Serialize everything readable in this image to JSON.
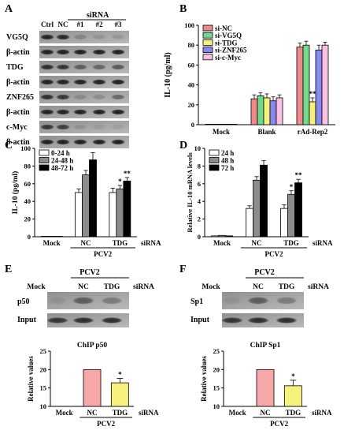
{
  "panels": {
    "A": {
      "letter": "A",
      "lanes": [
        "Ctrl",
        "NC",
        "#1",
        "#2",
        "#3"
      ],
      "header": "siRNA",
      "rows": [
        "VG5Q",
        "β-actin",
        "TDG",
        "β-actin",
        "ZNF265",
        "β-actin",
        "c-Myc",
        "β-actin"
      ]
    },
    "E": {
      "letter": "E",
      "rows": [
        "p50",
        "Input"
      ]
    },
    "F": {
      "letter": "F",
      "rows": [
        "Sp1",
        "Input"
      ]
    }
  },
  "chart_data": [
    {
      "panel": "B",
      "letter": "B",
      "type": "bar",
      "categories": [
        "Mock",
        "Blank",
        "rAd-Rep2"
      ],
      "ylabel": "IL-10 (pg/ml)",
      "ylim": [
        0,
        100
      ],
      "yticks": [
        0,
        20,
        40,
        60,
        80,
        100
      ],
      "legend_position": "top-left",
      "series": [
        {
          "name": "si-NC",
          "color": "#f08a8a",
          "values": [
            0.5,
            26,
            78
          ],
          "errors": [
            0,
            4,
            4
          ]
        },
        {
          "name": "si-VG5Q",
          "color": "#72d88e",
          "values": [
            0.5,
            29,
            80
          ],
          "errors": [
            0,
            3,
            4
          ]
        },
        {
          "name": "si-TDG",
          "color": "#f5f27a",
          "values": [
            0.5,
            27,
            23
          ],
          "errors": [
            0,
            4,
            4
          ]
        },
        {
          "name": "si-ZNF265",
          "color": "#8888ee",
          "values": [
            0.5,
            24,
            75
          ],
          "errors": [
            0,
            4,
            5
          ]
        },
        {
          "name": "si-c-Myc",
          "color": "#f9c2e2",
          "values": [
            0.5,
            27,
            80
          ],
          "errors": [
            0,
            3,
            3
          ]
        }
      ],
      "annotations": [
        {
          "series": 2,
          "category": 2,
          "text": "**"
        }
      ]
    },
    {
      "panel": "C",
      "letter": "C",
      "type": "bar",
      "categories": [
        "Mock",
        "NC",
        "TDG"
      ],
      "group_label": "PCV2",
      "right_label": "siRNA",
      "ylabel": "IL-10 (pg/ml)",
      "ylim": [
        0,
        100
      ],
      "yticks": [
        0,
        20,
        40,
        60,
        80,
        100
      ],
      "legend_position": "top-left",
      "series": [
        {
          "name": "0-24 h",
          "color": "#ffffff",
          "values": [
            0.5,
            50,
            50
          ],
          "errors": [
            0,
            4,
            5
          ]
        },
        {
          "name": "24-48 h",
          "color": "#8c8c8c",
          "values": [
            0.5,
            70,
            54
          ],
          "errors": [
            0,
            5,
            4
          ]
        },
        {
          "name": "48-72 h",
          "color": "#000000",
          "values": [
            0.5,
            87,
            63
          ],
          "errors": [
            0,
            8,
            4
          ]
        }
      ],
      "annotations": [
        {
          "series": 1,
          "category": 2,
          "text": "*"
        },
        {
          "series": 2,
          "category": 2,
          "text": "**"
        }
      ]
    },
    {
      "panel": "D",
      "letter": "D",
      "type": "bar",
      "categories": [
        "Mock",
        "NC",
        "TDG"
      ],
      "group_label": "PCV2",
      "right_label": "siRNA",
      "ylabel": "Relative IL-10 mRNA levels",
      "ylim": [
        0,
        10
      ],
      "yticks": [
        0,
        2,
        4,
        6,
        8,
        10
      ],
      "legend_position": "top-left",
      "series": [
        {
          "name": "24 h",
          "color": "#ffffff",
          "values": [
            0.1,
            3.2,
            3.2
          ],
          "errors": [
            0,
            0.3,
            0.4
          ]
        },
        {
          "name": "48 h",
          "color": "#8c8c8c",
          "values": [
            0.15,
            6.4,
            4.8
          ],
          "errors": [
            0,
            0.4,
            0.4
          ]
        },
        {
          "name": "72 h",
          "color": "#000000",
          "values": [
            0.1,
            8.1,
            6.1
          ],
          "errors": [
            0,
            0.5,
            0.4
          ]
        }
      ],
      "annotations": [
        {
          "series": 1,
          "category": 2,
          "text": "*"
        },
        {
          "series": 2,
          "category": 2,
          "text": "**"
        }
      ]
    },
    {
      "panel": "E",
      "type": "bar",
      "title": "ChIP p50",
      "categories": [
        "Mock",
        "NC",
        "TDG"
      ],
      "group_label": "PCV2",
      "right_label": "siRNA",
      "ylabel": "Relative values",
      "ylim": [
        10,
        25
      ],
      "yticks": [
        10,
        15,
        20,
        25
      ],
      "colors": [
        "#ffffff",
        "#f6a8a8",
        "#f7f17d"
      ],
      "values": [
        null,
        20,
        16.4
      ],
      "errors": [
        0,
        0,
        1.2
      ],
      "annotations": [
        {
          "category": 2,
          "text": "*"
        }
      ]
    },
    {
      "panel": "F",
      "type": "bar",
      "title": "ChIP Sp1",
      "categories": [
        "Mock",
        "NC",
        "TDG"
      ],
      "group_label": "PCV2",
      "right_label": "siRNA",
      "ylabel": "Relative values",
      "ylim": [
        10,
        25
      ],
      "yticks": [
        10,
        15,
        20,
        25
      ],
      "colors": [
        "#ffffff",
        "#f6a8a8",
        "#f7f17d"
      ],
      "values": [
        null,
        20,
        15.6
      ],
      "errors": [
        0,
        0,
        1.5
      ],
      "annotations": [
        {
          "category": 2,
          "text": "*"
        }
      ]
    }
  ]
}
